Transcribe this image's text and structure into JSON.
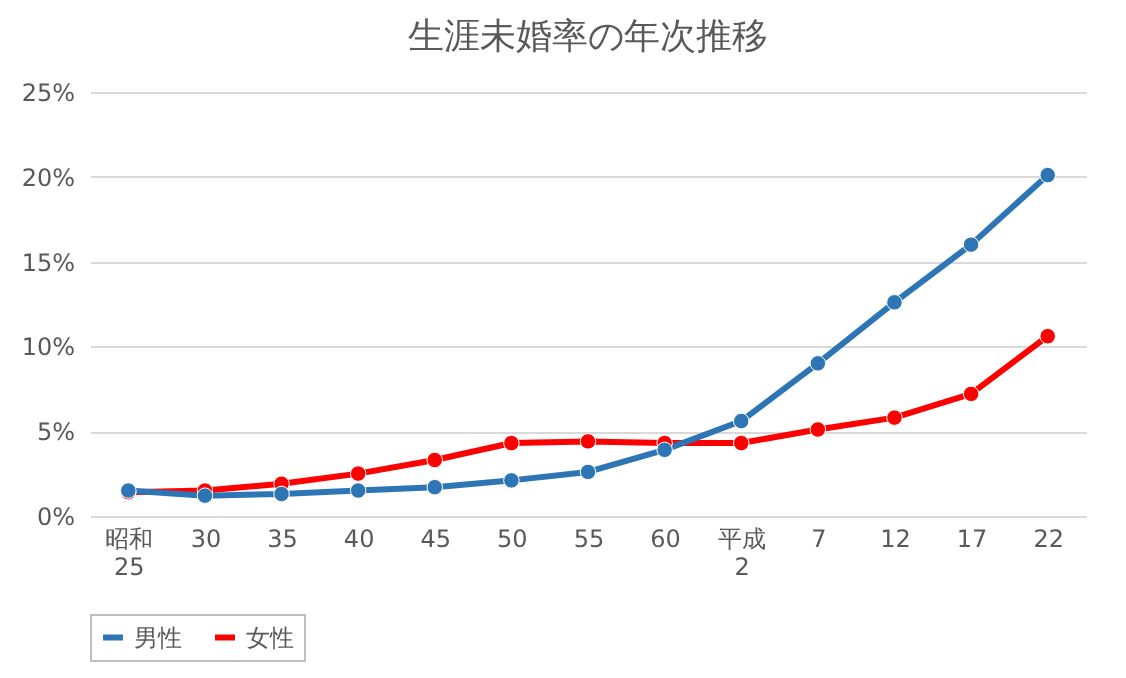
{
  "chart_data": {
    "type": "line",
    "title": "生涯未婚率の年次推移",
    "categories": [
      "昭和\n25",
      "30",
      "35",
      "40",
      "45",
      "50",
      "55",
      "60",
      "平成\n2",
      "7",
      "12",
      "17",
      "22"
    ],
    "series": [
      {
        "name": "男性",
        "color": "#2e75b6",
        "values": [
          1.5,
          1.2,
          1.3,
          1.5,
          1.7,
          2.1,
          2.6,
          3.9,
          5.6,
          9.0,
          12.6,
          16.0,
          20.1
        ]
      },
      {
        "name": "女性",
        "color": "#ff0000",
        "values": [
          1.4,
          1.5,
          1.9,
          2.5,
          3.3,
          4.3,
          4.4,
          4.3,
          4.3,
          5.1,
          5.8,
          7.2,
          10.6
        ]
      }
    ],
    "ylim": [
      0,
      25
    ],
    "yticks": [
      {
        "value": 0,
        "label": "0%"
      },
      {
        "value": 5,
        "label": "5%"
      },
      {
        "value": 10,
        "label": "10%"
      },
      {
        "value": 15,
        "label": "15%"
      },
      {
        "value": 20,
        "label": "20%"
      },
      {
        "value": 25,
        "label": "25%"
      }
    ],
    "grid": "y",
    "legend": "bottom",
    "marker": "circle",
    "line_style": "solid"
  }
}
